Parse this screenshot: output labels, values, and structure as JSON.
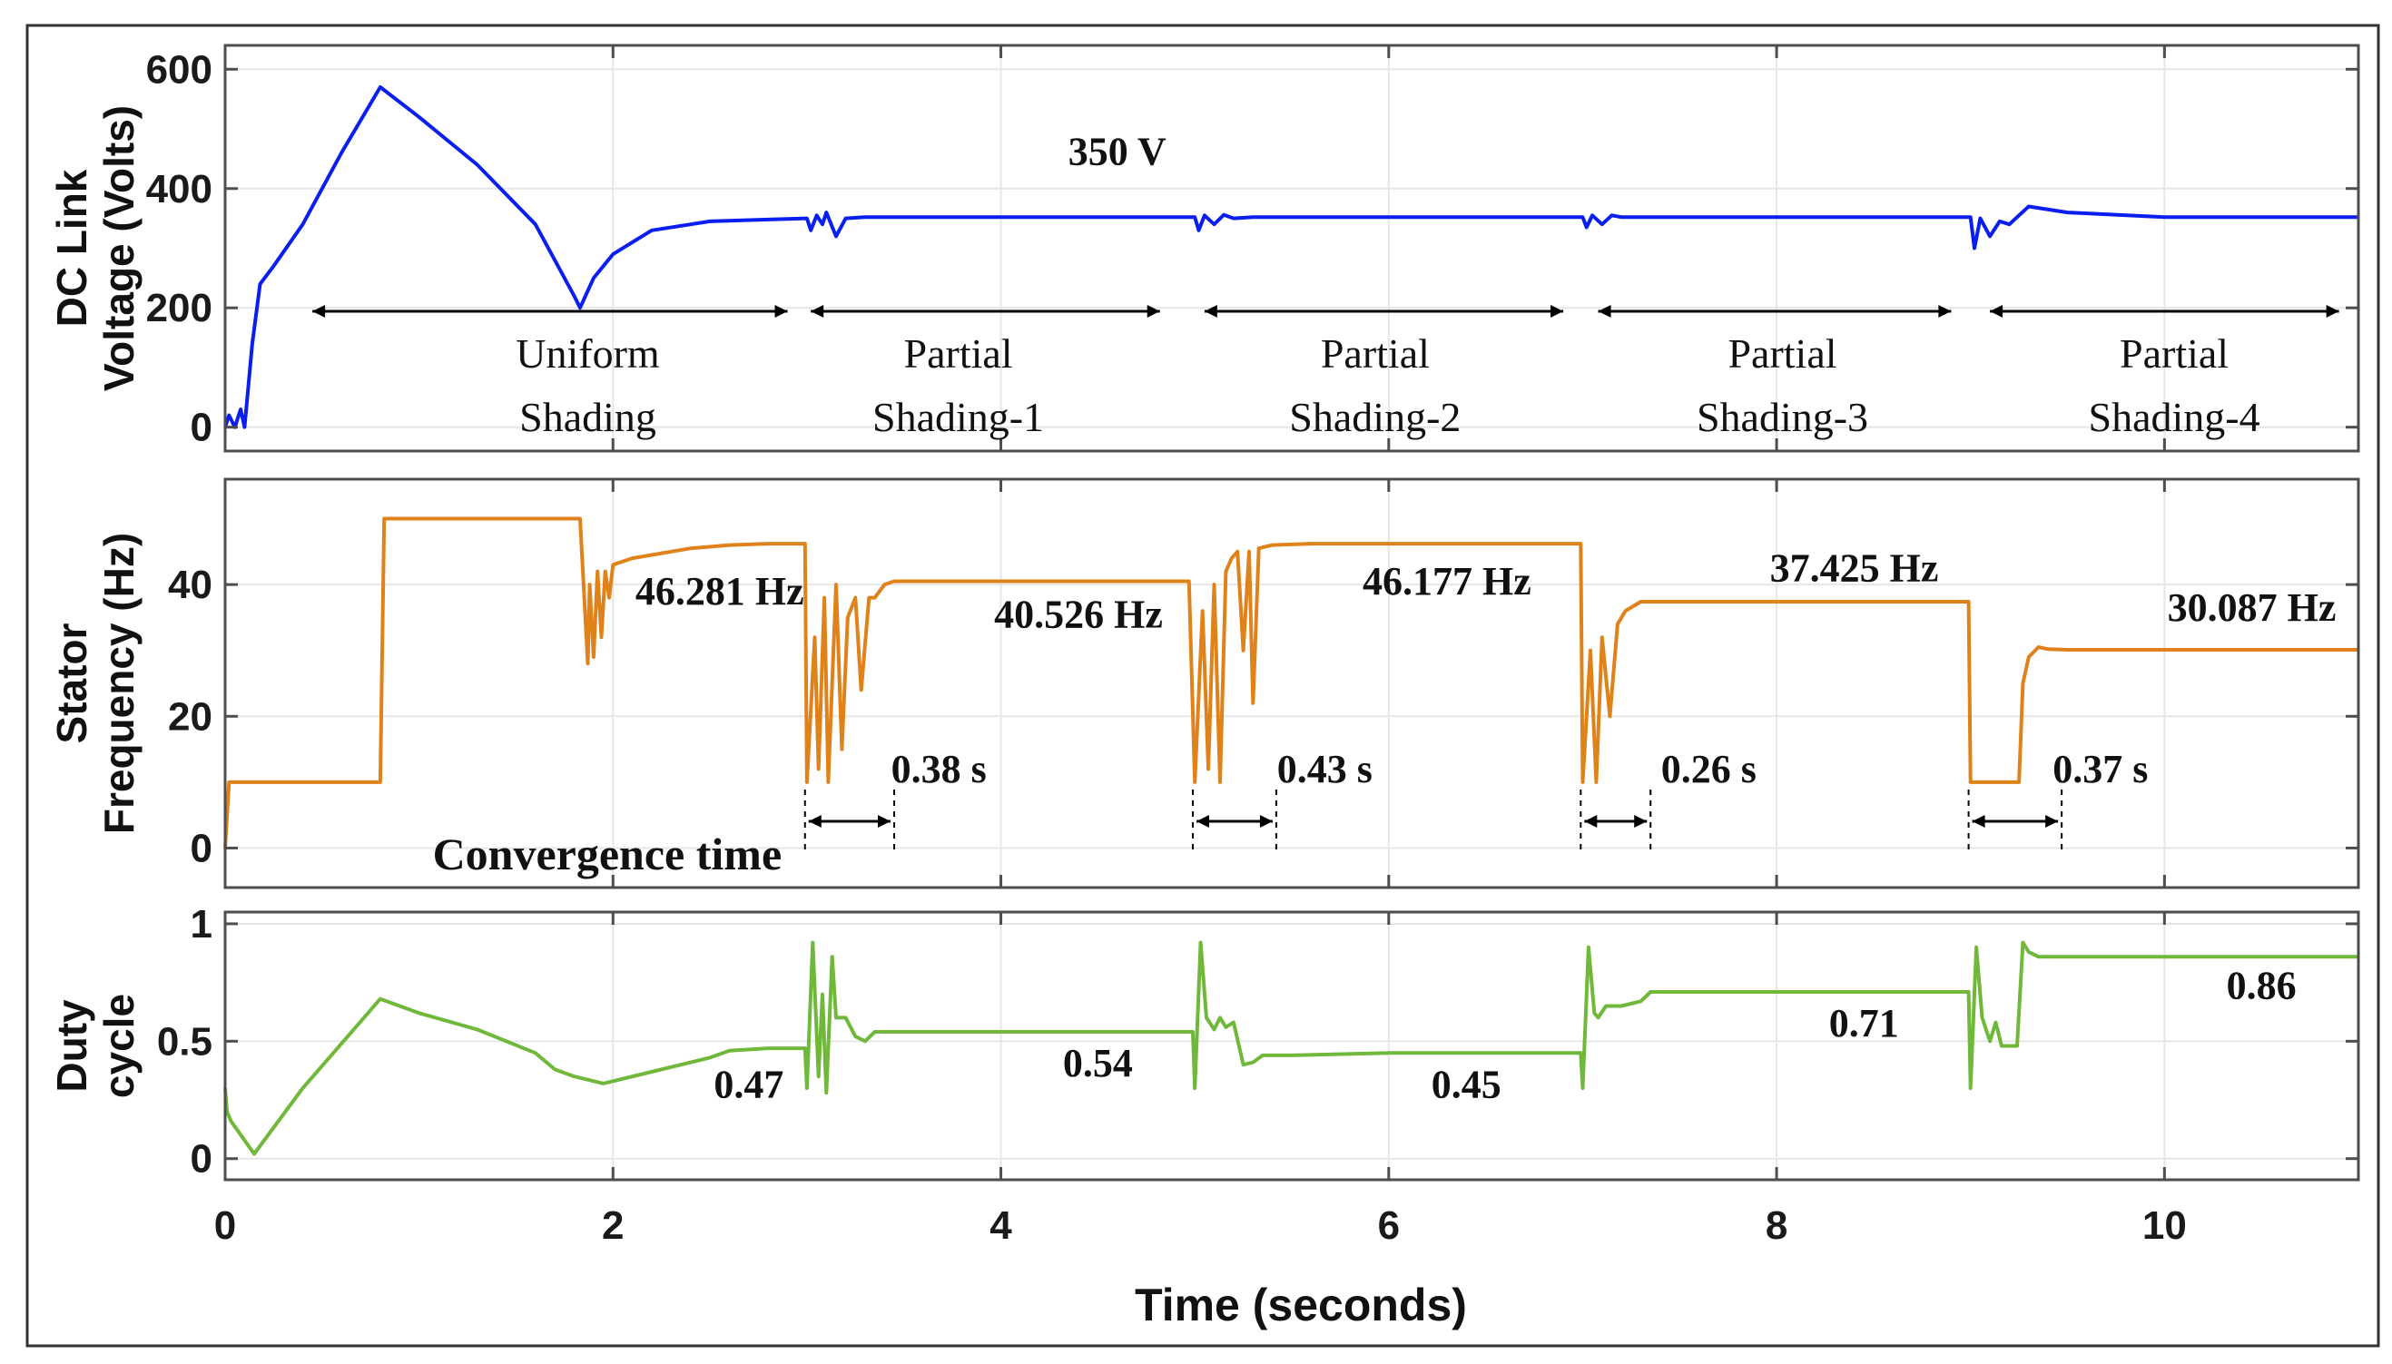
{
  "chart_data": [
    {
      "type": "line",
      "panel": "dc-link",
      "ylabel_lines": [
        "DC Link",
        "Voltage (Volts)"
      ],
      "ylim": [
        -40,
        640
      ],
      "xlim": [
        0,
        11
      ],
      "yticks": [
        0,
        200,
        400,
        600
      ],
      "color": "#0a1ef0",
      "series": [
        {
          "name": "DC Link Voltage",
          "x": [
            0,
            0.02,
            0.05,
            0.08,
            0.1,
            0.14,
            0.18,
            0.25,
            0.4,
            0.6,
            0.8,
            1.0,
            1.3,
            1.6,
            1.8,
            1.83,
            1.9,
            2.0,
            2.2,
            2.5,
            2.8,
            3.0,
            3.02,
            3.05,
            3.08,
            3.1,
            3.15,
            3.2,
            3.3,
            3.5,
            4.0,
            4.5,
            5.0,
            5.02,
            5.05,
            5.1,
            5.15,
            5.2,
            5.3,
            5.5,
            6.0,
            6.5,
            7.0,
            7.02,
            7.05,
            7.1,
            7.15,
            7.2,
            7.5,
            8.0,
            8.5,
            9.0,
            9.02,
            9.05,
            9.1,
            9.15,
            9.2,
            9.25,
            9.3,
            9.5,
            10.0,
            10.5,
            11.0
          ],
          "y": [
            0,
            20,
            0,
            30,
            0,
            140,
            240,
            270,
            340,
            460,
            570,
            520,
            440,
            340,
            220,
            200,
            250,
            290,
            330,
            345,
            348,
            350,
            330,
            355,
            340,
            360,
            320,
            350,
            352,
            352,
            352,
            352,
            352,
            330,
            355,
            340,
            356,
            350,
            352,
            352,
            352,
            352,
            352,
            335,
            355,
            340,
            355,
            352,
            352,
            352,
            352,
            352,
            300,
            350,
            320,
            345,
            340,
            355,
            370,
            360,
            352,
            352,
            352
          ]
        }
      ],
      "annotations": [
        {
          "text": "350 V",
          "x": 4.6,
          "y": 440
        },
        {
          "line1": "Uniform",
          "line2": "Shading",
          "x1": 0.45,
          "x2": 2.9,
          "label_x": 1.87
        },
        {
          "line1": "Partial",
          "line2": "Shading-1",
          "x1": 3.02,
          "x2": 4.82,
          "label_x": 3.78
        },
        {
          "line1": "Partial",
          "line2": "Shading-2",
          "x1": 5.05,
          "x2": 6.9,
          "label_x": 5.93
        },
        {
          "line1": "Partial",
          "line2": "Shading-3",
          "x1": 7.08,
          "x2": 8.9,
          "label_x": 8.03
        },
        {
          "line1": "Partial",
          "line2": "Shading-4",
          "x1": 9.1,
          "x2": 10.9,
          "label_x": 10.05
        }
      ]
    },
    {
      "type": "line",
      "panel": "stator-frequency",
      "ylabel_lines": [
        "Stator",
        "Frequency (Hz)"
      ],
      "ylim": [
        -6,
        56
      ],
      "xlim": [
        0,
        11
      ],
      "yticks": [
        0,
        20,
        40
      ],
      "color": "#e0821a",
      "series": [
        {
          "name": "Stator Frequency",
          "x": [
            0,
            0.02,
            0.8,
            0.82,
            1.83,
            1.87,
            1.88,
            1.9,
            1.92,
            1.94,
            1.96,
            1.98,
            2.0,
            2.05,
            2.1,
            2.2,
            2.4,
            2.6,
            2.8,
            2.99,
            3.0,
            3.04,
            3.06,
            3.09,
            3.11,
            3.15,
            3.18,
            3.21,
            3.25,
            3.28,
            3.32,
            3.35,
            3.4,
            3.45,
            3.5,
            4.0,
            4.5,
            4.97,
            5.0,
            5.04,
            5.07,
            5.1,
            5.13,
            5.16,
            5.19,
            5.22,
            5.25,
            5.28,
            5.3,
            5.33,
            5.4,
            5.6,
            6.0,
            6.5,
            6.99,
            7.0,
            7.04,
            7.07,
            7.1,
            7.14,
            7.18,
            7.22,
            7.3,
            7.35,
            7.6,
            8.0,
            8.5,
            8.99,
            9.0,
            9.25,
            9.27,
            9.3,
            9.35,
            9.4,
            9.5,
            10.0,
            10.5,
            11.0
          ],
          "y": [
            0,
            10,
            10,
            50,
            50,
            28,
            40,
            29,
            42,
            32,
            42,
            38,
            43,
            43.5,
            44,
            44.5,
            45.5,
            46,
            46.2,
            46.2,
            10,
            32,
            12,
            38,
            10,
            40,
            15,
            35,
            38,
            24,
            38,
            38,
            40,
            40.5,
            40.5,
            40.5,
            40.5,
            40.5,
            10,
            36,
            12,
            40,
            10,
            42,
            44,
            45,
            30,
            45,
            22,
            45.5,
            46,
            46.2,
            46.2,
            46.2,
            46.2,
            10,
            30,
            10,
            32,
            20,
            34,
            36,
            37.4,
            37.4,
            37.4,
            37.4,
            37.4,
            37.4,
            10,
            10,
            25,
            29,
            30.5,
            30.2,
            30.1,
            30.1,
            30.1,
            30.1
          ]
        }
      ],
      "annotations": [
        {
          "text": "46.281 Hz",
          "x": 2.55,
          "y": 37
        },
        {
          "text": "40.526 Hz",
          "x": 4.4,
          "y": 33.5
        },
        {
          "text": "46.177 Hz",
          "x": 6.3,
          "y": 38.5
        },
        {
          "text": "37.425 Hz",
          "x": 8.4,
          "y": 40.5
        },
        {
          "text": "30.087 Hz",
          "x": 10.45,
          "y": 34.5
        },
        {
          "text": "0.38 s",
          "x1": 2.99,
          "x2": 3.45,
          "label_x": 3.68
        },
        {
          "text": "0.43 s",
          "x1": 4.99,
          "x2": 5.42,
          "label_x": 5.67
        },
        {
          "text": "0.26 s",
          "x1": 6.99,
          "x2": 7.35,
          "label_x": 7.65
        },
        {
          "text": "0.37 s",
          "x1": 8.99,
          "x2": 9.47,
          "label_x": 9.67
        }
      ],
      "convergence_label": "Convergence  time"
    },
    {
      "type": "line",
      "panel": "duty-cycle",
      "ylabel_lines": [
        "Duty",
        "cycle"
      ],
      "xlabel": "Time (seconds)",
      "ylim": [
        -0.09,
        1.05
      ],
      "xlim": [
        0,
        11
      ],
      "xticks": [
        0,
        2,
        4,
        6,
        8,
        10
      ],
      "yticks": [
        0,
        0.5,
        1
      ],
      "color": "#6fb83a",
      "series": [
        {
          "name": "Duty cycle",
          "x": [
            0,
            0.01,
            0.03,
            0.15,
            0.4,
            0.8,
            1.0,
            1.3,
            1.6,
            1.7,
            1.8,
            1.95,
            2.2,
            2.5,
            2.6,
            2.8,
            2.99,
            3.0,
            3.03,
            3.06,
            3.08,
            3.1,
            3.13,
            3.15,
            3.18,
            3.2,
            3.25,
            3.3,
            3.35,
            3.5,
            4.0,
            4.5,
            4.99,
            5.0,
            5.03,
            5.06,
            5.1,
            5.13,
            5.16,
            5.2,
            5.25,
            5.3,
            5.35,
            5.5,
            6.0,
            6.5,
            6.99,
            7.0,
            7.03,
            7.06,
            7.08,
            7.12,
            7.2,
            7.3,
            7.35,
            7.6,
            8.0,
            8.5,
            8.99,
            9.0,
            9.03,
            9.06,
            9.1,
            9.13,
            9.16,
            9.2,
            9.24,
            9.27,
            9.3,
            9.35,
            9.5,
            10.0,
            10.5,
            11.0
          ],
          "y": [
            0.3,
            0.2,
            0.16,
            0.02,
            0.3,
            0.68,
            0.62,
            0.55,
            0.45,
            0.38,
            0.35,
            0.32,
            0.37,
            0.43,
            0.46,
            0.47,
            0.47,
            0.3,
            0.92,
            0.35,
            0.7,
            0.28,
            0.86,
            0.6,
            0.6,
            0.6,
            0.52,
            0.5,
            0.54,
            0.54,
            0.54,
            0.54,
            0.54,
            0.3,
            0.92,
            0.6,
            0.55,
            0.6,
            0.56,
            0.58,
            0.4,
            0.41,
            0.44,
            0.44,
            0.45,
            0.45,
            0.45,
            0.3,
            0.9,
            0.62,
            0.6,
            0.65,
            0.65,
            0.67,
            0.71,
            0.71,
            0.71,
            0.71,
            0.71,
            0.3,
            0.9,
            0.6,
            0.5,
            0.58,
            0.48,
            0.48,
            0.48,
            0.92,
            0.88,
            0.86,
            0.86,
            0.86,
            0.86,
            0.86
          ]
        }
      ],
      "annotations": [
        {
          "text": "0.47",
          "x": 2.7,
          "y": 0.26
        },
        {
          "text": "0.54",
          "x": 4.5,
          "y": 0.35
        },
        {
          "text": "0.45",
          "x": 6.4,
          "y": 0.26
        },
        {
          "text": "0.71",
          "x": 8.45,
          "y": 0.52
        },
        {
          "text": "0.86",
          "x": 10.5,
          "y": 0.68
        }
      ]
    }
  ]
}
